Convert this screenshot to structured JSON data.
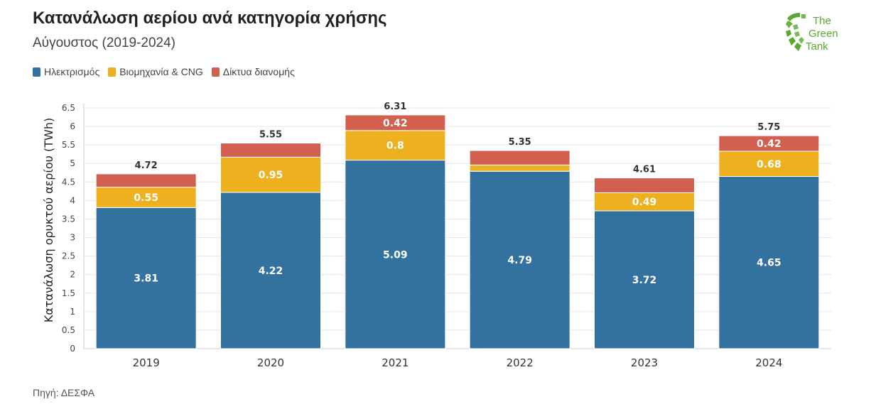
{
  "header": {
    "title": "Κατανάλωση αερίου ανά κατηγορία χρήσης",
    "subtitle": "Αύγουστος (2019-2024)"
  },
  "source": "Πηγή: ΔΕΣΦΑ",
  "logo": {
    "line1": "The",
    "line2": "Green",
    "line3": "Tank",
    "color": "#5aa832"
  },
  "chart_data": {
    "type": "bar",
    "stacked": true,
    "categories": [
      "2019",
      "2020",
      "2021",
      "2022",
      "2023",
      "2024"
    ],
    "series": [
      {
        "name": "Ηλεκτρισμός",
        "color": "#33729f",
        "values": [
          3.81,
          4.22,
          5.09,
          4.79,
          3.72,
          4.65
        ],
        "labels": [
          "3.81",
          "4.22",
          "5.09",
          "4.79",
          "3.72",
          "4.65"
        ]
      },
      {
        "name": "Βιομηχανία & CNG",
        "color": "#edb120",
        "values": [
          0.55,
          0.95,
          0.8,
          0.17,
          0.49,
          0.68
        ],
        "labels": [
          "0.55",
          "0.95",
          "0.8",
          "",
          "0.49",
          "0.68"
        ]
      },
      {
        "name": "Δίκτυα διανομής",
        "color": "#d1604f",
        "values": [
          0.36,
          0.38,
          0.42,
          0.39,
          0.4,
          0.42
        ],
        "labels": [
          "",
          "",
          "0.42",
          "",
          "",
          "0.42"
        ]
      }
    ],
    "totals": [
      "4.72",
      "5.55",
      "6.31",
      "5.35",
      "4.61",
      "5.75"
    ],
    "ylabel": "Κατανάλωση ορυκτού αερίου (TWh)",
    "xlabel": "",
    "ylim": [
      0,
      6.5
    ],
    "yticks": [
      "0",
      "0.5",
      "1",
      "1.5",
      "2",
      "2.5",
      "3",
      "3.5",
      "4",
      "4.5",
      "5",
      "5.5",
      "6",
      "6.5"
    ],
    "grid": true,
    "legend_position": "top-left"
  }
}
